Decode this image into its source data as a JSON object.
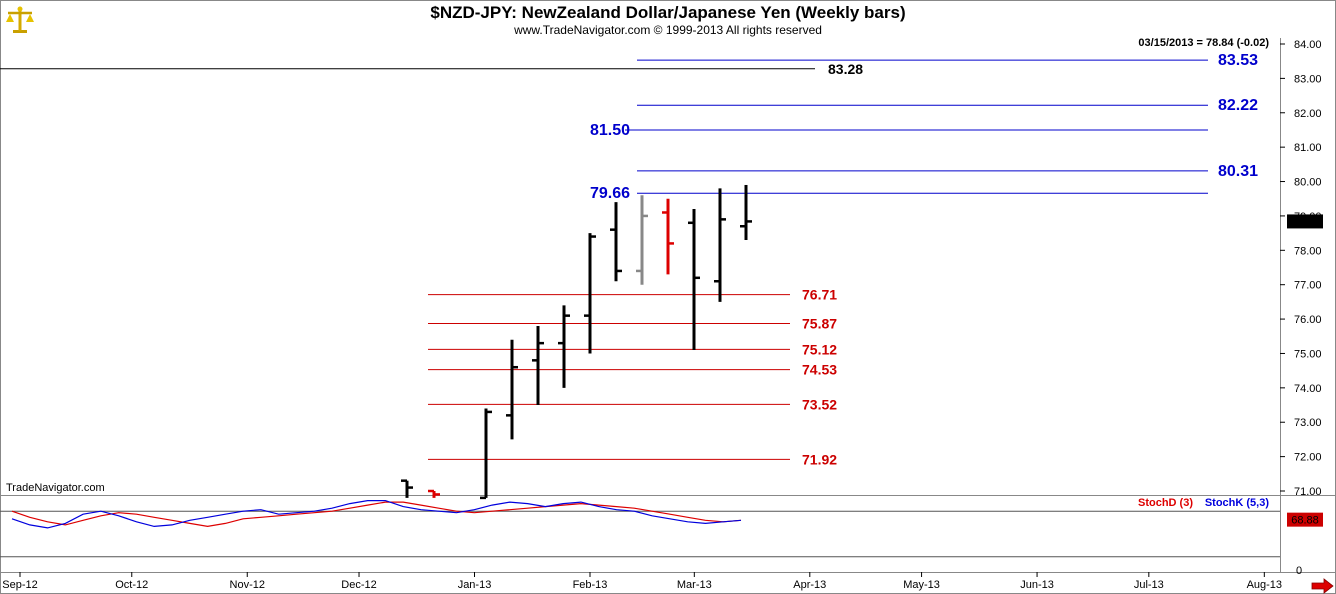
{
  "header": {
    "title": "$NZD-JPY:  NewZealand Dollar/Japanese Yen  (Weekly bars)",
    "copyright": "www.TradeNavigator.com © 1999-2013 All rights reserved",
    "last_quote": "03/15/2013 = 78.84 (-0.02)",
    "watermark": "TradeNavigator.com",
    "logo_icon": "scales-logo-icon"
  },
  "colors": {
    "blue_level": "#0000cc",
    "red_level": "#cc0000",
    "price_bar": "#000000",
    "price_bar_gray": "#888888",
    "price_bar_red": "#dd0000",
    "stoch_d": "#dd0000",
    "stoch_k": "#0000dd",
    "last_price_tag": "#000000",
    "stoch_tag": "#cc0000",
    "scroll_arrow": "#dd0000"
  },
  "chart_data": [
    {
      "type": "bar",
      "subtype": "ohlc",
      "x_axis": {
        "labels": [
          "Sep-12",
          "Oct-12",
          "Nov-12",
          "Dec-12",
          "Jan-13",
          "Feb-13",
          "Mar-13",
          "Apr-13",
          "May-13",
          "Jun-13",
          "Jul-13",
          "Aug-13"
        ]
      },
      "y_axis": {
        "ticks": [
          "71.00",
          "72.00",
          "73.00",
          "74.00",
          "75.00",
          "76.00",
          "77.00",
          "78.00",
          "79.00",
          "80.00",
          "81.00",
          "82.00",
          "83.00",
          "84.00"
        ],
        "ylim": [
          70.8,
          84.2
        ],
        "side": "right"
      },
      "last_price_label": "78.84",
      "bars": [
        {
          "week": "2012-12-14",
          "open": 71.3,
          "high": 71.3,
          "low": 70.8,
          "close": 71.1,
          "color": "black"
        },
        {
          "week": "2012-12-21",
          "open": 71.0,
          "high": 71.0,
          "low": 70.8,
          "close": 70.9,
          "color": "red"
        },
        {
          "week": "2013-01-04",
          "open": 70.8,
          "high": 73.4,
          "low": 70.8,
          "close": 73.3,
          "color": "black"
        },
        {
          "week": "2013-01-11",
          "open": 73.2,
          "high": 75.4,
          "low": 72.5,
          "close": 74.6,
          "color": "black"
        },
        {
          "week": "2013-01-18",
          "open": 74.8,
          "high": 75.8,
          "low": 73.5,
          "close": 75.3,
          "color": "black"
        },
        {
          "week": "2013-01-25",
          "open": 75.3,
          "high": 76.4,
          "low": 74.0,
          "close": 76.1,
          "color": "black"
        },
        {
          "week": "2013-02-01",
          "open": 76.1,
          "high": 78.5,
          "low": 75.0,
          "close": 78.4,
          "color": "black"
        },
        {
          "week": "2013-02-08",
          "open": 78.6,
          "high": 79.4,
          "low": 77.1,
          "close": 77.4,
          "color": "black"
        },
        {
          "week": "2013-02-15",
          "open": 77.4,
          "high": 79.6,
          "low": 77.0,
          "close": 79.0,
          "color": "gray"
        },
        {
          "week": "2013-02-22",
          "open": 79.1,
          "high": 79.5,
          "low": 77.3,
          "close": 78.2,
          "color": "red"
        },
        {
          "week": "2013-03-01",
          "open": 78.8,
          "high": 79.2,
          "low": 75.1,
          "close": 77.2,
          "color": "black"
        },
        {
          "week": "2013-03-08",
          "open": 77.1,
          "high": 79.8,
          "low": 76.5,
          "close": 78.9,
          "color": "black"
        },
        {
          "week": "2013-03-15",
          "open": 78.7,
          "high": 79.9,
          "low": 78.3,
          "close": 78.84,
          "color": "black"
        }
      ],
      "levels": [
        {
          "value": 83.28,
          "label": "83.28",
          "color": "black"
        },
        {
          "value": 83.53,
          "label": "83.53",
          "color": "blue"
        },
        {
          "value": 82.22,
          "label": "82.22",
          "color": "blue"
        },
        {
          "value": 81.5,
          "label": "81.50",
          "color": "blue"
        },
        {
          "value": 80.31,
          "label": "80.31",
          "color": "blue"
        },
        {
          "value": 79.66,
          "label": "79.66",
          "color": "blue"
        },
        {
          "value": 76.71,
          "label": "76.71",
          "color": "red"
        },
        {
          "value": 75.87,
          "label": "75.87",
          "color": "red"
        },
        {
          "value": 75.12,
          "label": "75.12",
          "color": "red"
        },
        {
          "value": 74.53,
          "label": "74.53",
          "color": "red"
        },
        {
          "value": 73.52,
          "label": "73.52",
          "color": "red"
        },
        {
          "value": 71.92,
          "label": "71.92",
          "color": "red"
        }
      ]
    },
    {
      "type": "line",
      "panel": "stochastic",
      "legend": [
        "StochD (3)",
        "StochK (5,3)"
      ],
      "bottom_tick": "0",
      "current_value_label": "68.88",
      "reference_levels": [
        80,
        20
      ],
      "ylim": [
        0,
        100
      ],
      "series": [
        {
          "name": "StochD (3)",
          "color": "red",
          "values": [
            80,
            72,
            66,
            62,
            68,
            74,
            78,
            76,
            72,
            68,
            64,
            60,
            64,
            70,
            72,
            74,
            76,
            78,
            80,
            84,
            88,
            92,
            92,
            88,
            84,
            80,
            78,
            80,
            82,
            84,
            86,
            88,
            90,
            88,
            86,
            84,
            80,
            76,
            72,
            68,
            66,
            68
          ]
        },
        {
          "name": "StochK (5,3)",
          "color": "blue",
          "values": [
            70,
            62,
            58,
            64,
            76,
            80,
            74,
            66,
            60,
            62,
            68,
            72,
            76,
            80,
            82,
            76,
            78,
            80,
            84,
            90,
            94,
            94,
            86,
            82,
            80,
            78,
            82,
            88,
            92,
            90,
            86,
            90,
            92,
            86,
            82,
            80,
            74,
            70,
            66,
            64,
            66,
            68
          ]
        }
      ]
    }
  ]
}
